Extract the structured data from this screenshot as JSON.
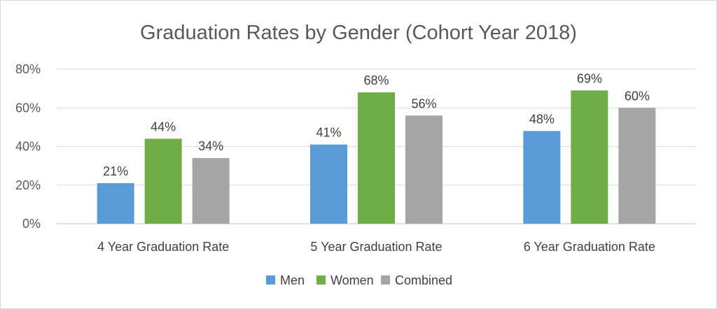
{
  "chart_data": {
    "type": "bar",
    "title": "Graduation Rates by Gender (Cohort Year 2018)",
    "categories": [
      "4 Year Graduation Rate",
      "5 Year Graduation Rate",
      "6 Year Graduation Rate"
    ],
    "series": [
      {
        "name": "Men",
        "values": [
          21,
          41,
          48
        ],
        "labels": [
          "21%",
          "41%",
          "48%"
        ],
        "color": "#5b9bd5"
      },
      {
        "name": "Women",
        "values": [
          44,
          68,
          69
        ],
        "labels": [
          "44%",
          "68%",
          "69%"
        ],
        "color": "#70ad47"
      },
      {
        "name": "Combined",
        "values": [
          34,
          56,
          60
        ],
        "labels": [
          "34%",
          "56%",
          "60%"
        ],
        "color": "#a5a5a5"
      }
    ],
    "ylim": [
      0,
      80
    ],
    "yticks": [
      0,
      20,
      40,
      60,
      80
    ],
    "ytick_labels": [
      "0%",
      "20%",
      "40%",
      "60%",
      "80%"
    ],
    "grid": true,
    "legend_position": "bottom"
  }
}
